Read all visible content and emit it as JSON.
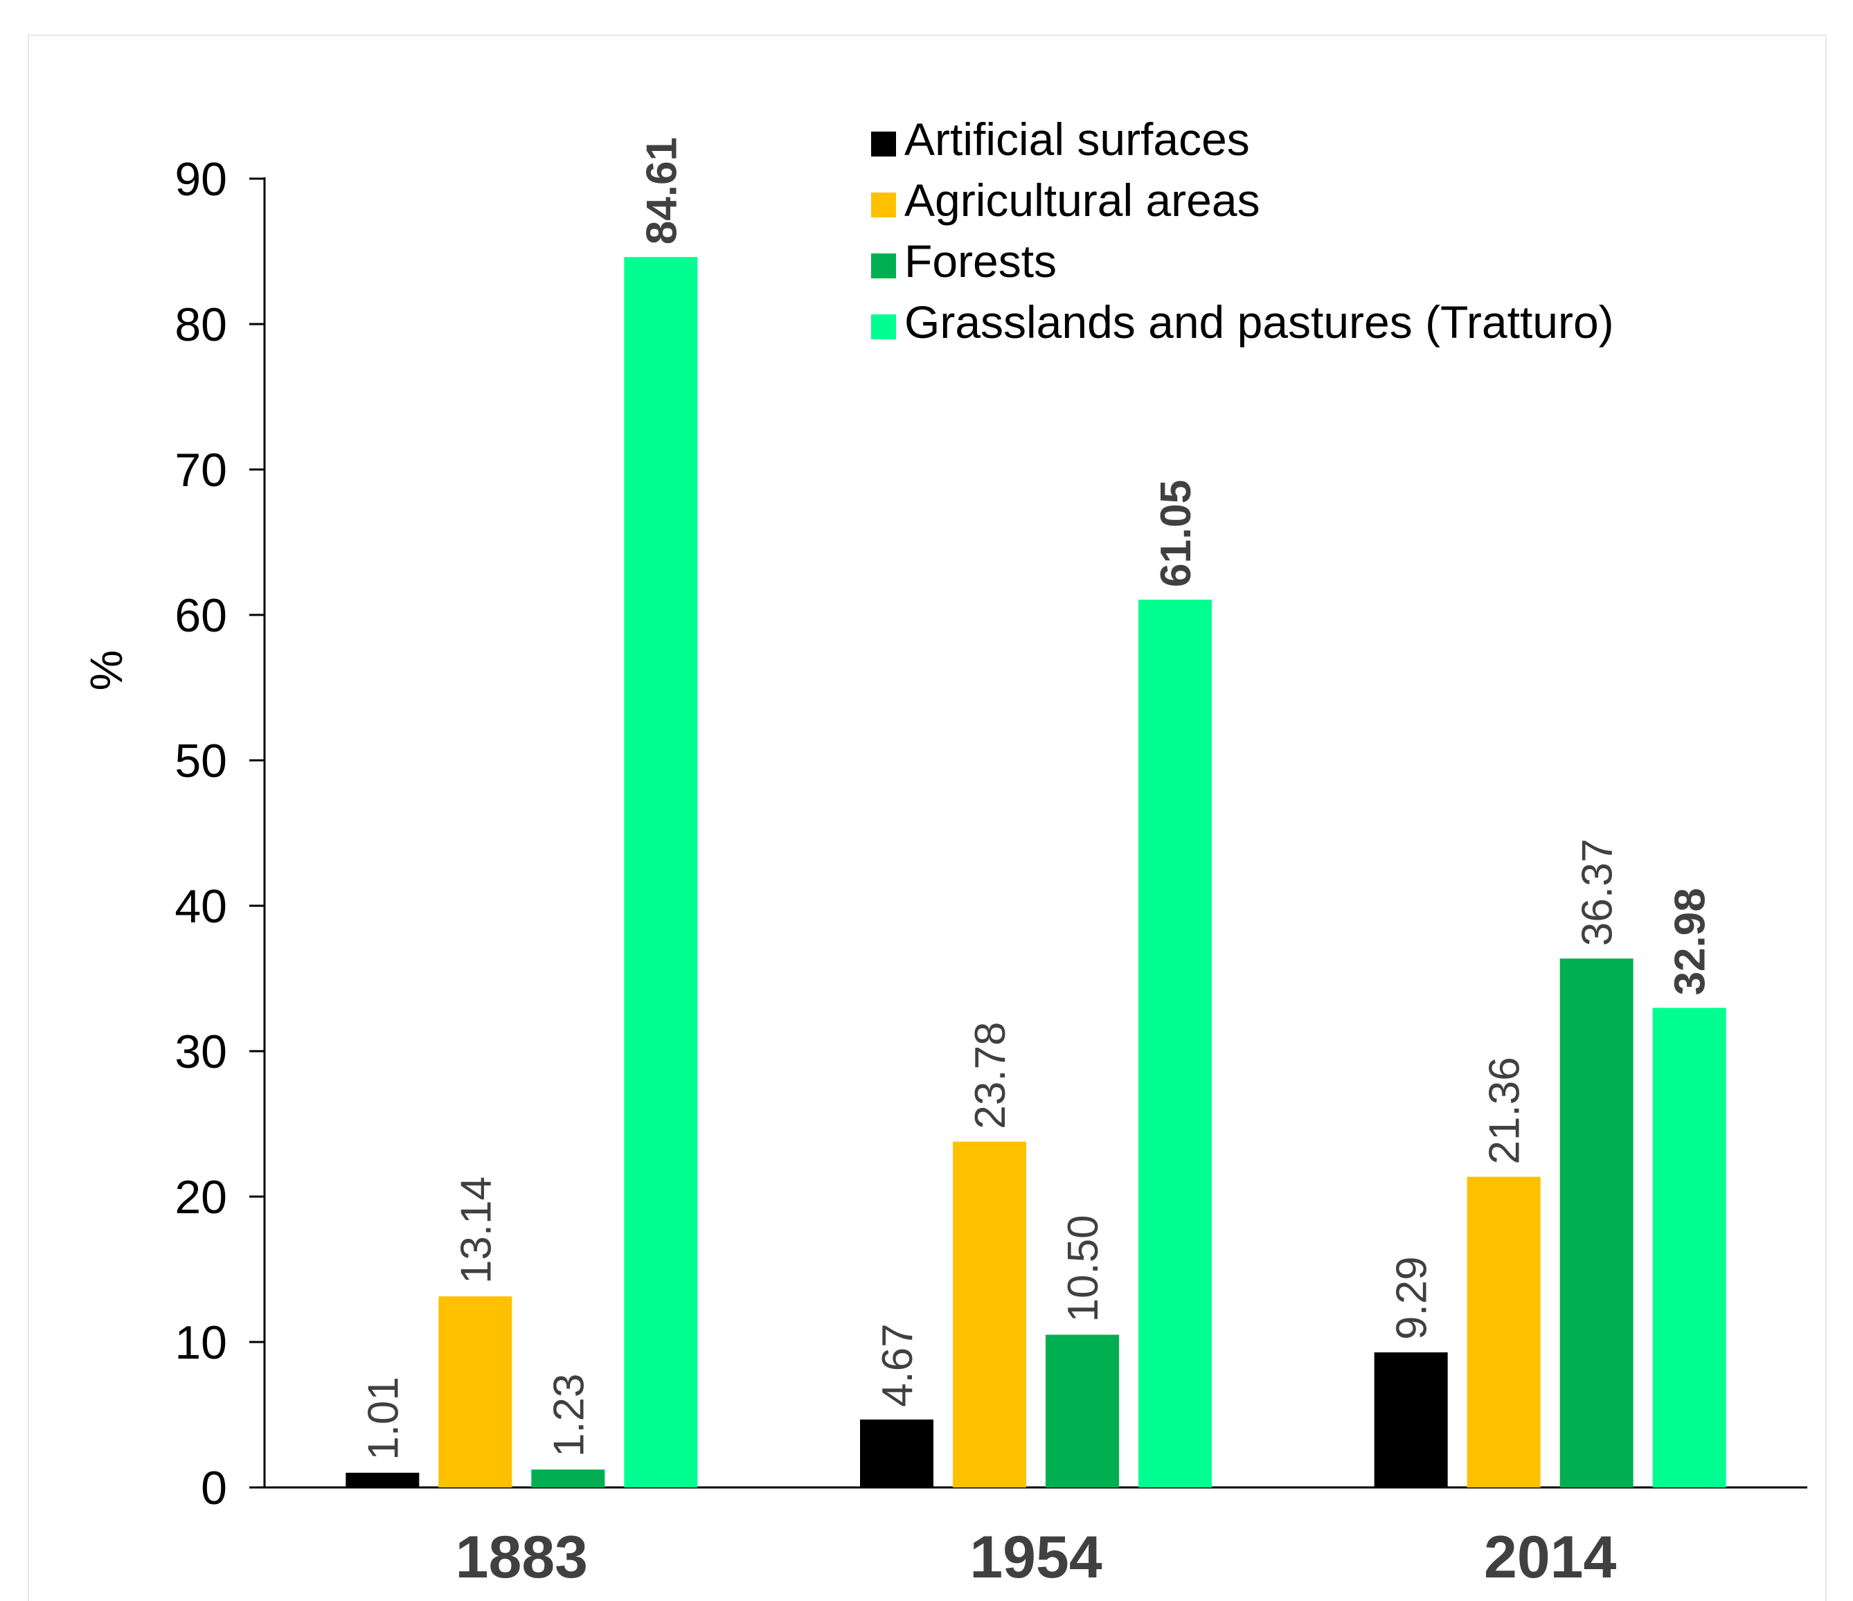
{
  "chart_data": {
    "type": "bar",
    "title": "",
    "xlabel": "",
    "ylabel": "%",
    "ylim": [
      0,
      90
    ],
    "yticks": [
      0,
      10,
      20,
      30,
      40,
      50,
      60,
      70,
      80,
      90
    ],
    "categories": [
      "1883",
      "1954",
      "2014"
    ],
    "series": [
      {
        "name": "Artificial surfaces",
        "color": "#000000",
        "values": [
          1.01,
          4.67,
          9.29
        ],
        "labels": [
          "1.01",
          "4.67",
          "9.29"
        ]
      },
      {
        "name": "Agricultural areas",
        "color": "#FFC000",
        "values": [
          13.14,
          23.78,
          21.36
        ],
        "labels": [
          "13.14",
          "23.78",
          "21.36"
        ]
      },
      {
        "name": "Forests",
        "color": "#00B050",
        "values": [
          1.23,
          10.5,
          36.37
        ],
        "labels": [
          "1.23",
          "10.50",
          "36.37"
        ]
      },
      {
        "name": "Grasslands and pastures (Tratturo)",
        "color": "#00FF90",
        "values": [
          84.61,
          61.05,
          32.98
        ],
        "labels": [
          "84.61",
          "61.05",
          "32.98"
        ]
      }
    ],
    "bold_labels": [
      "84.61",
      "61.05",
      "32.98"
    ],
    "legend_position": "top-right",
    "grid": false
  }
}
